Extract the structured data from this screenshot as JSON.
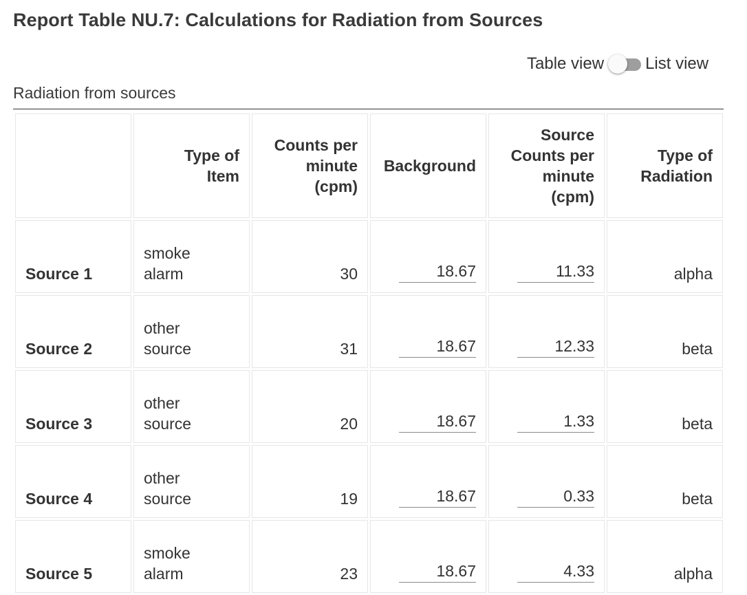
{
  "page": {
    "title": "Report Table NU.7: Calculations for Radiation from Sources"
  },
  "view_toggle": {
    "left_label": "Table view",
    "right_label": "List view",
    "state": "table"
  },
  "table": {
    "caption": "Radiation from sources",
    "headers": {
      "row_label": "",
      "type_of_item": [
        "Type of",
        "Item"
      ],
      "cpm": [
        "Counts per",
        "minute",
        "(cpm)"
      ],
      "background": [
        "Background"
      ],
      "source_cpm": [
        "Source",
        "Counts per",
        "minute",
        "(cpm)"
      ],
      "type_of_radiation": [
        "Type of",
        "Radiation"
      ]
    },
    "rows": [
      {
        "label": "Source 1",
        "item": [
          "smoke",
          "alarm"
        ],
        "cpm": "30",
        "background": "18.67",
        "source_cpm": "11.33",
        "radiation": "alpha"
      },
      {
        "label": "Source 2",
        "item": [
          "other",
          "source"
        ],
        "cpm": "31",
        "background": "18.67",
        "source_cpm": "12.33",
        "radiation": "beta"
      },
      {
        "label": "Source 3",
        "item": [
          "other",
          "source"
        ],
        "cpm": "20",
        "background": "18.67",
        "source_cpm": "1.33",
        "radiation": "beta"
      },
      {
        "label": "Source 4",
        "item": [
          "other",
          "source"
        ],
        "cpm": "19",
        "background": "18.67",
        "source_cpm": "0.33",
        "radiation": "beta"
      },
      {
        "label": "Source 5",
        "item": [
          "smoke",
          "alarm"
        ],
        "cpm": "23",
        "background": "18.67",
        "source_cpm": "4.33",
        "radiation": "alpha"
      }
    ]
  },
  "colors": {
    "toggle_track": "#9e9e9e",
    "toggle_knob": "#fafafa",
    "cell_border": "#e6e6e6",
    "input_underline": "#8a8a8a",
    "text": "#333333"
  }
}
